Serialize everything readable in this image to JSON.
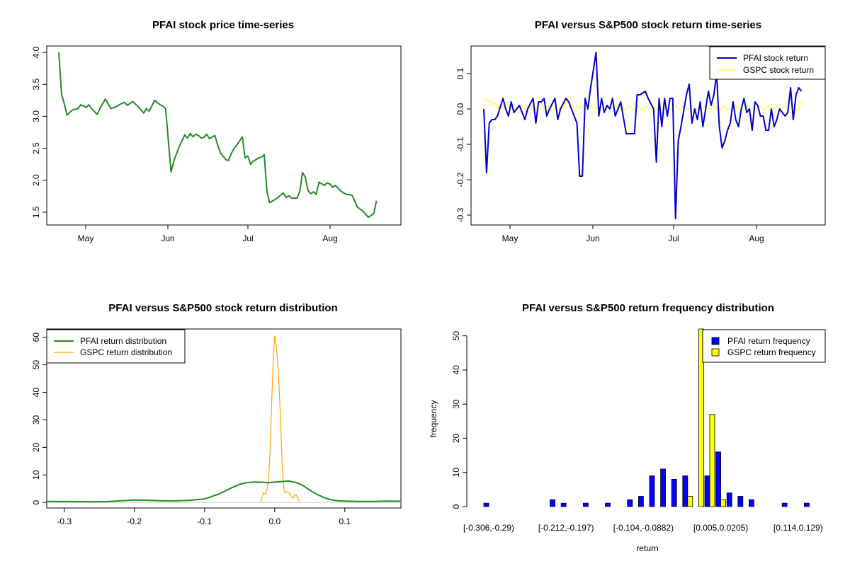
{
  "colors": {
    "price": "#228B22",
    "pfai_return": "#0000CD",
    "gspc_return": "#FFFF00",
    "pfai_density": "#228B22",
    "gspc_density": "#FFA500",
    "pfai_bar": "#0000FF",
    "gspc_bar": "#FFFF00"
  },
  "chart_data": [
    {
      "type": "line",
      "title": "PFAI stock price time-series",
      "xlabel": "",
      "ylabel": "",
      "x_ticks": [
        "May",
        "Jun",
        "Jul",
        "Aug"
      ],
      "y_ticks": [
        "1.5",
        "2.0",
        "2.5",
        "3.0",
        "3.5",
        "4.0"
      ],
      "xlim": [
        0,
        120
      ],
      "ylim": [
        1.4,
        4.0
      ],
      "grid": false,
      "series": [
        {
          "x": [
            0,
            1,
            2,
            3,
            5,
            7,
            8,
            10,
            11,
            12,
            14,
            15,
            17,
            19,
            21,
            22,
            24,
            25,
            27,
            29,
            31,
            32,
            33,
            35,
            37,
            38,
            39,
            41,
            42,
            44,
            46,
            47,
            48,
            49,
            50,
            51,
            52,
            53,
            54,
            55,
            57,
            58,
            59,
            61,
            62,
            63,
            64,
            65,
            67,
            68,
            69,
            70,
            71,
            72,
            73,
            74,
            75,
            76,
            77,
            79,
            80,
            81,
            82,
            83,
            84,
            85,
            87,
            88,
            89,
            90,
            91,
            92,
            93,
            94,
            95,
            97,
            98,
            99,
            100,
            101,
            103,
            104,
            105,
            107,
            108,
            109,
            110,
            111,
            113,
            114,
            115,
            116
          ],
          "y": [
            4.0,
            3.35,
            3.2,
            3.02,
            3.1,
            3.12,
            3.18,
            3.14,
            3.18,
            3.12,
            3.03,
            3.12,
            3.27,
            3.12,
            3.15,
            3.18,
            3.22,
            3.17,
            3.23,
            3.15,
            3.05,
            3.12,
            3.08,
            3.25,
            3.18,
            3.16,
            3.12,
            2.13,
            2.3,
            2.53,
            2.71,
            2.66,
            2.73,
            2.68,
            2.72,
            2.7,
            2.66,
            2.67,
            2.72,
            2.65,
            2.7,
            2.55,
            2.43,
            2.32,
            2.31,
            2.42,
            2.5,
            2.55,
            2.68,
            2.35,
            2.38,
            2.25,
            2.3,
            2.32,
            2.35,
            2.36,
            2.4,
            1.82,
            1.65,
            1.7,
            1.73,
            1.77,
            1.8,
            1.73,
            1.76,
            1.72,
            1.72,
            1.83,
            2.12,
            2.05,
            1.84,
            1.79,
            1.82,
            1.78,
            1.97,
            1.92,
            1.96,
            1.94,
            1.89,
            1.92,
            1.83,
            1.8,
            1.78,
            1.77,
            1.68,
            1.58,
            1.55,
            1.52,
            1.42,
            1.45,
            1.48,
            1.68
          ]
        }
      ]
    },
    {
      "type": "line",
      "title": "PFAI versus S&P500 stock return time-series",
      "xlabel": "",
      "ylabel": "",
      "x_ticks": [
        "May",
        "Jun",
        "Jul",
        "Aug"
      ],
      "y_ticks": [
        "-0.3",
        "-0.2",
        "-0.1",
        "0.0",
        "0.1"
      ],
      "xlim": [
        0,
        120
      ],
      "ylim": [
        -0.31,
        0.16
      ],
      "grid": false,
      "legend": "top-right",
      "series": [
        {
          "name": "PFAI stock return",
          "x": [
            0,
            1,
            2,
            3,
            4,
            5,
            7,
            8,
            9,
            10,
            11,
            12,
            13,
            15,
            16,
            18,
            19,
            20,
            21,
            22,
            23,
            24,
            26,
            27,
            28,
            30,
            31,
            32,
            33,
            34,
            35,
            36,
            37,
            38,
            39,
            40,
            41,
            42,
            43,
            44,
            45,
            46,
            47,
            48,
            50,
            52,
            53,
            54,
            55,
            56,
            57,
            59,
            60,
            62,
            63,
            64,
            65,
            66,
            67,
            68,
            69,
            70,
            71,
            72,
            74,
            75,
            76,
            77,
            78,
            79,
            80,
            81,
            82,
            83,
            84,
            85,
            86,
            87,
            88,
            89,
            90,
            91,
            92,
            93,
            94,
            95,
            96,
            97,
            98,
            99,
            100,
            101,
            102,
            103,
            104,
            105,
            106,
            107,
            108,
            110,
            111,
            112,
            113,
            114,
            115,
            116
          ],
          "y": [
            0.0,
            -0.18,
            -0.04,
            -0.03,
            -0.03,
            -0.02,
            0.03,
            0.0,
            -0.02,
            0.02,
            -0.01,
            0.0,
            0.01,
            -0.03,
            0.0,
            0.03,
            -0.04,
            0.02,
            0.02,
            0.03,
            -0.02,
            0.0,
            0.03,
            -0.03,
            0.0,
            0.03,
            0.02,
            0.0,
            -0.02,
            -0.04,
            -0.19,
            -0.19,
            0.03,
            0.0,
            0.06,
            0.11,
            0.16,
            -0.02,
            0.03,
            -0.01,
            0.01,
            0.0,
            0.03,
            -0.02,
            0.02,
            -0.07,
            -0.07,
            -0.07,
            -0.07,
            0.04,
            0.04,
            0.05,
            0.03,
            0.0,
            -0.15,
            0.03,
            -0.05,
            0.03,
            -0.02,
            0.03,
            0.03,
            -0.31,
            -0.09,
            -0.05,
            0.04,
            0.07,
            -0.04,
            0.0,
            -0.03,
            0.02,
            -0.05,
            0.0,
            0.05,
            0.01,
            0.04,
            0.1,
            -0.05,
            -0.11,
            -0.09,
            -0.06,
            -0.04,
            0.02,
            -0.03,
            -0.05,
            0.0,
            0.03,
            -0.01,
            0.0,
            -0.06,
            0.02,
            0.01,
            -0.02,
            -0.02,
            -0.06,
            -0.06,
            0.0,
            -0.05,
            -0.03,
            0.0,
            -0.02,
            -0.01,
            0.06,
            -0.03,
            0.04,
            0.06,
            0.05
          ]
        },
        {
          "name": "GSPC stock return",
          "x": [
            0,
            1,
            2,
            3,
            4,
            5,
            6,
            7,
            8,
            9,
            10,
            11,
            12,
            13,
            14,
            15,
            16,
            17,
            18,
            19,
            20,
            21,
            22,
            23,
            24,
            25,
            26,
            27,
            28,
            29,
            30,
            31,
            32,
            33,
            34,
            35,
            36,
            37,
            38,
            39,
            40,
            41,
            42,
            43,
            44,
            45,
            46,
            47,
            48,
            49,
            50,
            51,
            52,
            53,
            54,
            55,
            56,
            57,
            58,
            59,
            60,
            61,
            62,
            63,
            64,
            65,
            66,
            67,
            68,
            69,
            70,
            71,
            72,
            73,
            74,
            75,
            76,
            77,
            78,
            79,
            80,
            81,
            82,
            83,
            84,
            85,
            86,
            87,
            88,
            89,
            90,
            91,
            92,
            93,
            94,
            95,
            96,
            97,
            98,
            99,
            100,
            101,
            102,
            103,
            104,
            105,
            106,
            107,
            108,
            109,
            110,
            111,
            112,
            113,
            114,
            115,
            116
          ],
          "y": [
            0.02,
            0.03,
            0.02,
            0.01,
            0.02,
            0.0,
            0.01,
            0.0,
            0.02,
            0.01,
            0.0,
            0.0,
            -0.01,
            0.0,
            0.01,
            0.0,
            0.01,
            0.0,
            0.01,
            0.0,
            0.01,
            0.02,
            0.0,
            0.01,
            0.0,
            0.01,
            0.0,
            -0.01,
            0.01,
            0.0,
            0.02,
            0.03,
            0.01,
            0.0,
            0.01,
            0.0,
            0.01,
            0.0,
            0.0,
            0.01,
            0.0,
            0.0,
            0.01,
            0.0,
            0.0,
            0.0,
            0.01,
            0.0,
            0.01,
            0.0,
            0.0,
            0.0,
            0.0,
            0.01,
            0.0,
            0.0,
            0.01,
            0.0,
            0.0,
            0.0,
            0.01,
            0.0,
            0.0,
            0.0,
            0.0,
            0.01,
            0.0,
            0.01,
            0.0,
            0.0,
            0.01,
            0.0,
            0.0,
            0.01,
            0.0,
            0.0,
            0.01,
            0.0,
            0.0,
            0.0,
            0.0,
            0.01,
            0.0,
            0.0,
            0.01,
            0.0,
            0.0,
            0.0,
            0.01,
            0.0,
            0.0,
            0.0,
            0.01,
            0.0,
            0.0,
            0.0,
            0.01,
            0.0,
            0.0,
            0.0,
            0.0,
            0.01,
            0.0,
            0.0,
            0.01,
            0.0,
            0.0,
            0.01,
            0.0,
            0.0,
            0.01,
            0.0,
            0.0,
            0.01,
            0.0,
            0.0,
            0.02
          ]
        }
      ]
    },
    {
      "type": "line",
      "title": "PFAI versus S&P500 stock return distribution",
      "xlabel": "",
      "ylabel": "",
      "x_ticks": [
        "-0.3",
        "-0.2",
        "-0.1",
        "0.0",
        "0.1"
      ],
      "y_ticks": [
        "0",
        "10",
        "20",
        "30",
        "40",
        "50",
        "60"
      ],
      "xlim": [
        -0.325,
        0.18
      ],
      "ylim": [
        -2,
        63
      ],
      "grid": false,
      "legend": "top-left",
      "series": [
        {
          "name": "PFAI return distribution",
          "x": [
            -0.325,
            -0.3,
            -0.28,
            -0.26,
            -0.24,
            -0.22,
            -0.2,
            -0.18,
            -0.16,
            -0.14,
            -0.12,
            -0.1,
            -0.08,
            -0.06,
            -0.05,
            -0.04,
            -0.03,
            -0.02,
            -0.01,
            0.0,
            0.01,
            0.02,
            0.03,
            0.04,
            0.05,
            0.06,
            0.07,
            0.08,
            0.09,
            0.1,
            0.12,
            0.14,
            0.16,
            0.18
          ],
          "y": [
            0.4,
            0.35,
            0.3,
            0.25,
            0.3,
            0.6,
            0.9,
            0.8,
            0.6,
            0.6,
            0.8,
            1.3,
            3.0,
            5.5,
            6.6,
            7.2,
            7.4,
            7.4,
            7.2,
            7.4,
            7.6,
            7.8,
            7.3,
            6.2,
            4.5,
            3.0,
            1.8,
            1.0,
            0.6,
            0.5,
            0.4,
            0.4,
            0.5,
            0.45
          ]
        },
        {
          "name": "GSPC return distribution",
          "x": [
            -0.02,
            -0.018,
            -0.016,
            -0.014,
            -0.012,
            -0.01,
            -0.008,
            -0.006,
            -0.004,
            -0.002,
            0.0,
            0.002,
            0.004,
            0.006,
            0.008,
            0.01,
            0.012,
            0.014,
            0.016,
            0.018,
            0.02,
            0.022,
            0.024,
            0.026,
            0.028,
            0.03,
            0.032,
            0.034,
            0.036
          ],
          "y": [
            0.0,
            2.0,
            3.5,
            3.0,
            3.5,
            6.0,
            12.0,
            22.0,
            38.0,
            52.0,
            60.5,
            57.0,
            52.0,
            44.0,
            32.0,
            18.0,
            8.0,
            4.0,
            3.5,
            4.0,
            3.5,
            3.0,
            2.0,
            1.5,
            2.5,
            3.0,
            2.0,
            1.0,
            0.0
          ]
        }
      ]
    },
    {
      "type": "bar",
      "title": "PFAI versus S&P500 return frequency distribution",
      "xlabel": "return",
      "ylabel": "frequency",
      "y_ticks": [
        "0",
        "10",
        "20",
        "30",
        "40",
        "50"
      ],
      "ylim": [
        0,
        52
      ],
      "grid": false,
      "legend": "top-right",
      "category_labels": [
        {
          "index": 0,
          "text": "[-0.306,-0.29)"
        },
        {
          "index": 7,
          "text": "[-0.212,-0.197)"
        },
        {
          "index": 14,
          "text": "[-0.104,-0.0882)"
        },
        {
          "index": 21,
          "text": "[0.005,0.0205)"
        },
        {
          "index": 28,
          "text": "[0.114,0.129)"
        }
      ],
      "series": [
        {
          "name": "PFAI return frequency",
          "values": [
            1,
            0,
            0,
            0,
            0,
            0,
            2,
            1,
            0,
            1,
            0,
            1,
            0,
            2,
            3,
            9,
            11,
            8,
            9,
            0,
            9,
            16,
            4,
            3,
            2,
            0,
            0,
            1,
            0,
            1
          ]
        },
        {
          "name": "GSPC return frequency",
          "values": [
            0,
            0,
            0,
            0,
            0,
            0,
            0,
            0,
            0,
            0,
            0,
            0,
            0,
            0,
            0,
            0,
            0,
            0,
            3,
            56,
            27,
            2,
            0,
            0,
            0,
            0,
            0,
            0,
            0,
            0
          ]
        }
      ]
    }
  ]
}
